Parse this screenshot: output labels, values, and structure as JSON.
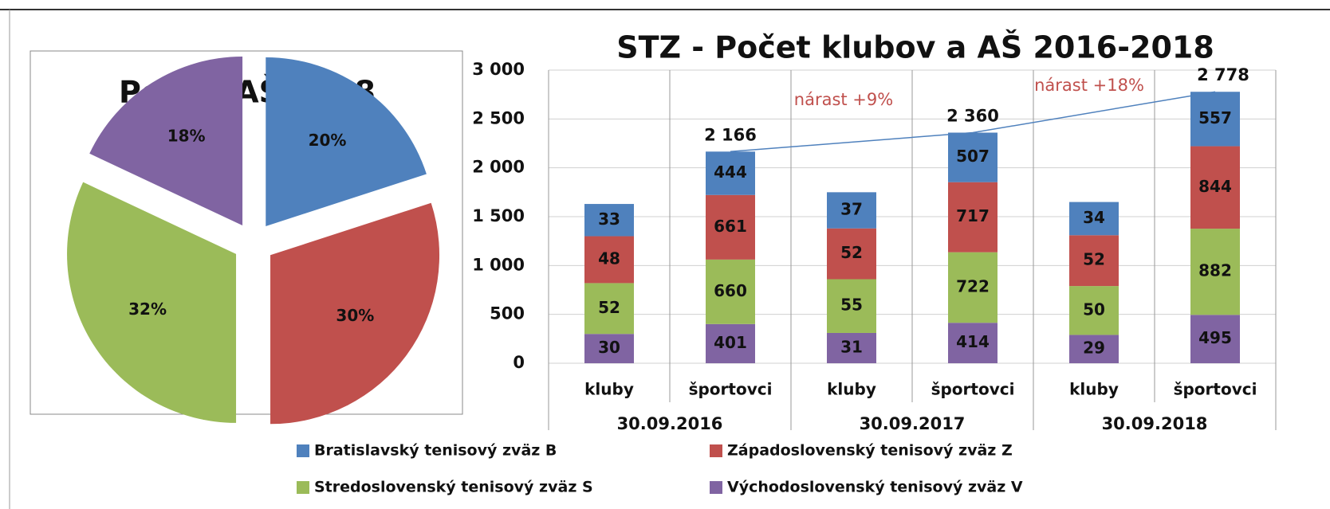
{
  "chart_data": [
    {
      "type": "pie",
      "title": "Podiel AŠ 2018",
      "values": [
        20,
        30,
        32,
        18
      ],
      "value_labels": [
        "20%",
        "30%",
        "32%",
        "18%"
      ],
      "colors": [
        "#4f81bd",
        "#c0504d",
        "#9bbb59",
        "#8064a2"
      ],
      "exploded": true
    },
    {
      "type": "stacked-bar",
      "title": "STZ - Počet klubov a AŠ 2016-2018",
      "categories": [
        "kluby",
        "športovci",
        "kluby",
        "športovci",
        "kluby",
        "športovci"
      ],
      "groups": [
        "30.09.2016",
        "30.09.2017",
        "30.09.2018"
      ],
      "category_axes": [
        "y2",
        "y",
        "y2",
        "y",
        "y2",
        "y"
      ],
      "series": [
        {
          "name": "Východoslovenský tenisový zväz V",
          "color": "#8064a2",
          "values": [
            30,
            401,
            31,
            414,
            29,
            495
          ]
        },
        {
          "name": "Stredoslovenský tenisový zväz S",
          "color": "#9bbb59",
          "values": [
            52,
            660,
            55,
            722,
            50,
            882
          ]
        },
        {
          "name": "Západoslovenský tenisový zväz Z",
          "color": "#c0504d",
          "values": [
            48,
            661,
            52,
            717,
            52,
            844
          ]
        },
        {
          "name": "Bratislavský tenisový zväz B",
          "color": "#4f81bd",
          "values": [
            33,
            444,
            37,
            507,
            34,
            557
          ]
        }
      ],
      "totals": [
        null,
        2166,
        null,
        2360,
        null,
        2778
      ],
      "total_labels": [
        null,
        "2 166",
        null,
        "2 360",
        null,
        "2 778"
      ],
      "trend_color": "#4f81bd",
      "annotations": [
        "nárast +9%",
        "nárast +18%"
      ],
      "annotation_color": "#c0504d",
      "ylim": [
        0,
        3000
      ],
      "yticks": [
        0,
        500,
        {
          "value": 1000,
          "label": "1 000"
        },
        {
          "value": 1500,
          "label": "1 500"
        },
        {
          "value": 2000,
          "label": "2 000"
        },
        {
          "value": 2500,
          "label": "2 500"
        },
        {
          "value": 3000,
          "label": "3 000"
        }
      ],
      "y2lim": [
        0,
        300
      ],
      "legend": "bottom"
    }
  ]
}
